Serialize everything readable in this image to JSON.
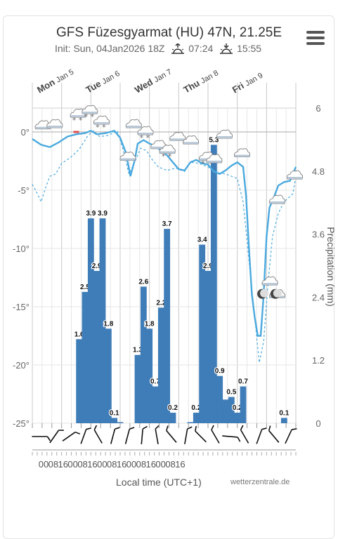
{
  "header": {
    "title": "GFS Füzesgyarmat (HU) 47N, 21.25E",
    "init": "Init: Sun, 04Jan2026 18Z",
    "sunrise": "07:24",
    "sunset": "15:55"
  },
  "footer": {
    "xaxis_title": "Local time (UTC+1)",
    "credit": "wetterzentrale.de"
  },
  "colors": {
    "temperature": "#4aa9de",
    "bar": "#3f7db9",
    "frost_marker": "#e05050",
    "grid": "#d0d0d0"
  },
  "chart_data": {
    "type": "bar+line",
    "days": [
      {
        "weekday": "Mon",
        "date": "Jan 5"
      },
      {
        "weekday": "Tue",
        "date": "Jan 6"
      },
      {
        "weekday": "Wed",
        "date": "Jan 7"
      },
      {
        "weekday": "Thu",
        "date": "Jan 8"
      },
      {
        "weekday": "Fri",
        "date": "Jan 9"
      }
    ],
    "hour_ticks": [
      "00",
      "08",
      "16",
      "00",
      "08",
      "16",
      "00",
      "08",
      "16",
      "00",
      "08",
      "16",
      "00",
      "08",
      "16"
    ],
    "left_axis": {
      "range": [
        -25,
        0
      ],
      "ticks": [
        "0°",
        "-5°",
        "-10°",
        "-15°",
        "-20°",
        "-25°"
      ]
    },
    "right_axis": {
      "label": "Precipitation (mm)",
      "range": [
        0,
        6
      ],
      "ticks": [
        "6",
        "4.8",
        "3.6",
        "2.4",
        "1.2",
        "0"
      ]
    },
    "precip_bars": [
      {
        "t": 1.6,
        "v": 1.6,
        "label": "1.6"
      },
      {
        "t": 1.8,
        "v": 2.5,
        "label": "2.5"
      },
      {
        "t": 2.0,
        "v": 3.9,
        "label": "3.9"
      },
      {
        "t": 2.2,
        "v": 2.9,
        "label": "2.9"
      },
      {
        "t": 2.4,
        "v": 3.9,
        "label": "3.9"
      },
      {
        "t": 2.6,
        "v": 1.8,
        "label": "1.8"
      },
      {
        "t": 2.8,
        "v": 0.1,
        "label": "0.1"
      },
      {
        "t": 3.0,
        "v": 0.02,
        "label": ""
      },
      {
        "t": 3.6,
        "v": 1.3,
        "label": "1.3"
      },
      {
        "t": 3.8,
        "v": 2.6,
        "label": "2.6"
      },
      {
        "t": 4.0,
        "v": 1.8,
        "label": "1.8"
      },
      {
        "t": 4.2,
        "v": 0.7,
        "label": "0.7"
      },
      {
        "t": 4.4,
        "v": 2.2,
        "label": "2.2"
      },
      {
        "t": 4.6,
        "v": 3.7,
        "label": "3.7"
      },
      {
        "t": 4.8,
        "v": 0.2,
        "label": "0.2"
      },
      {
        "t": 5.4,
        "v": 0.02,
        "label": ""
      },
      {
        "t": 5.6,
        "v": 0.2,
        "label": "0.2"
      },
      {
        "t": 5.8,
        "v": 3.4,
        "label": "3.4"
      },
      {
        "t": 6.0,
        "v": 2.9,
        "label": "2.9"
      },
      {
        "t": 6.2,
        "v": 5.3,
        "label": "5.3"
      },
      {
        "t": 6.4,
        "v": 0.9,
        "label": "0.9"
      },
      {
        "t": 6.6,
        "v": 0.45,
        "label": ""
      },
      {
        "t": 6.8,
        "v": 0.5,
        "label": "0.5"
      },
      {
        "t": 7.0,
        "v": 0.2,
        "label": "0.2"
      },
      {
        "t": 7.2,
        "v": 0.7,
        "label": "0.7"
      },
      {
        "t": 8.6,
        "v": 0.1,
        "label": "0.1"
      }
    ],
    "temperature_solid": [
      [
        0,
        -0.6
      ],
      [
        0.3,
        -1.1
      ],
      [
        0.6,
        -1.3
      ],
      [
        0.9,
        -0.9
      ],
      [
        1.2,
        -0.4
      ],
      [
        1.5,
        -0.2
      ],
      [
        1.8,
        -0.1
      ],
      [
        2.0,
        0.1
      ],
      [
        2.2,
        -0.2
      ],
      [
        2.5,
        -0.1
      ],
      [
        2.8,
        0.1
      ],
      [
        3.0,
        -0.5
      ],
      [
        3.2,
        -1.8
      ],
      [
        3.35,
        -3.8
      ],
      [
        3.5,
        -2.4
      ],
      [
        3.6,
        -1.0
      ],
      [
        3.8,
        -0.7
      ],
      [
        4.0,
        -1.0
      ],
      [
        4.2,
        -1.2
      ],
      [
        4.4,
        -1.6
      ],
      [
        4.6,
        -2.0
      ],
      [
        4.8,
        -2.6
      ],
      [
        5.0,
        -3.2
      ],
      [
        5.2,
        -3.3
      ],
      [
        5.4,
        -2.6
      ],
      [
        5.6,
        -2.4
      ],
      [
        5.8,
        -2.7
      ],
      [
        6.0,
        -2.8
      ],
      [
        6.2,
        -3.4
      ],
      [
        6.4,
        -3.6
      ],
      [
        6.6,
        -3.3
      ],
      [
        6.8,
        -2.9
      ],
      [
        7.0,
        -2.6
      ],
      [
        7.2,
        -3.0
      ],
      [
        7.3,
        -5.5
      ],
      [
        7.4,
        -10
      ],
      [
        7.5,
        -14
      ],
      [
        7.6,
        -16
      ],
      [
        7.7,
        -17.5
      ],
      [
        7.8,
        -17.5
      ],
      [
        7.9,
        -14
      ],
      [
        8.0,
        -9
      ],
      [
        8.1,
        -6.5
      ],
      [
        8.25,
        -5.6
      ],
      [
        8.4,
        -4.6
      ],
      [
        8.6,
        -4.3
      ],
      [
        8.8,
        -4.2
      ],
      [
        9.0,
        -3.0
      ]
    ],
    "temperature_dashed": [
      [
        0,
        -4.5
      ],
      [
        0.15,
        -5.2
      ],
      [
        0.3,
        -6
      ],
      [
        0.45,
        -4.8
      ],
      [
        0.6,
        -3.8
      ],
      [
        0.8,
        -3.6
      ],
      [
        1.0,
        -2.7
      ],
      [
        1.3,
        -2.2
      ],
      [
        1.6,
        -1.5
      ],
      [
        1.9,
        -0.3
      ],
      [
        2.1,
        0.1
      ],
      [
        2.3,
        -0.4
      ],
      [
        2.6,
        -0.3
      ],
      [
        2.9,
        0.1
      ],
      [
        3.1,
        -1.5
      ],
      [
        3.3,
        -3.6
      ],
      [
        3.5,
        -2.6
      ],
      [
        3.7,
        -1.4
      ],
      [
        3.9,
        -1.6
      ],
      [
        4.1,
        -2.4
      ],
      [
        4.3,
        -3.0
      ],
      [
        4.6,
        -3.3
      ],
      [
        4.9,
        -3.1
      ],
      [
        5.2,
        -3.4
      ],
      [
        5.4,
        -2.6
      ],
      [
        5.7,
        -2.7
      ],
      [
        6.0,
        -3.0
      ],
      [
        6.3,
        -3.5
      ],
      [
        6.6,
        -3.6
      ],
      [
        7.0,
        -4.0
      ],
      [
        7.2,
        -6
      ],
      [
        7.4,
        -11
      ],
      [
        7.6,
        -16
      ],
      [
        7.75,
        -19.8
      ],
      [
        7.9,
        -18
      ],
      [
        8.05,
        -13
      ],
      [
        8.2,
        -9
      ],
      [
        8.4,
        -7
      ],
      [
        8.6,
        -6
      ],
      [
        8.9,
        -5.3
      ],
      [
        9.0,
        -3.8
      ]
    ],
    "frost_marker": {
      "t": 1.5,
      "temp": 0
    },
    "wind_barb_angles": [
      90,
      35,
      55,
      20,
      -30,
      15,
      15,
      5,
      -10,
      -40,
      10,
      -45,
      -30,
      95,
      -30,
      20,
      -40,
      25
    ],
    "weather_icons": [
      {
        "t": 0.35,
        "temp": 0.5,
        "kind": "cloud"
      },
      {
        "t": 0.75,
        "temp": 0.6,
        "kind": "cloud"
      },
      {
        "t": 1.55,
        "temp": 1.5,
        "kind": "snow"
      },
      {
        "t": 1.95,
        "temp": 1.8,
        "kind": "snow"
      },
      {
        "t": 2.35,
        "temp": 0.9,
        "kind": "snow"
      },
      {
        "t": 3.25,
        "temp": -2.2,
        "kind": "cloud"
      },
      {
        "t": 3.45,
        "temp": 0.6,
        "kind": "cloud"
      },
      {
        "t": 3.85,
        "temp": 0.0,
        "kind": "snow"
      },
      {
        "t": 4.3,
        "temp": -1.2,
        "kind": "cloud"
      },
      {
        "t": 4.6,
        "temp": -1.6,
        "kind": "snow"
      },
      {
        "t": 4.95,
        "temp": -0.5,
        "kind": "cloud"
      },
      {
        "t": 5.4,
        "temp": -0.8,
        "kind": "cloud"
      },
      {
        "t": 5.95,
        "temp": -2.2,
        "kind": "snow"
      },
      {
        "t": 6.2,
        "temp": -2.4,
        "kind": "cloud"
      },
      {
        "t": 6.55,
        "temp": -0.3,
        "kind": "cloud"
      },
      {
        "t": 7.15,
        "temp": -1.9,
        "kind": "cloud"
      },
      {
        "t": 8.1,
        "temp": -12.9,
        "kind": "cloud"
      },
      {
        "t": 8.35,
        "temp": -14.0,
        "kind": "cloud"
      },
      {
        "t": 8.35,
        "temp": -5.9,
        "kind": "cloud"
      },
      {
        "t": 8.95,
        "temp": -3.8,
        "kind": "cloud"
      }
    ],
    "moon_icons": [
      {
        "t": 7.85,
        "temp": -13.9
      },
      {
        "t": 8.3,
        "temp": -13.9
      }
    ]
  }
}
